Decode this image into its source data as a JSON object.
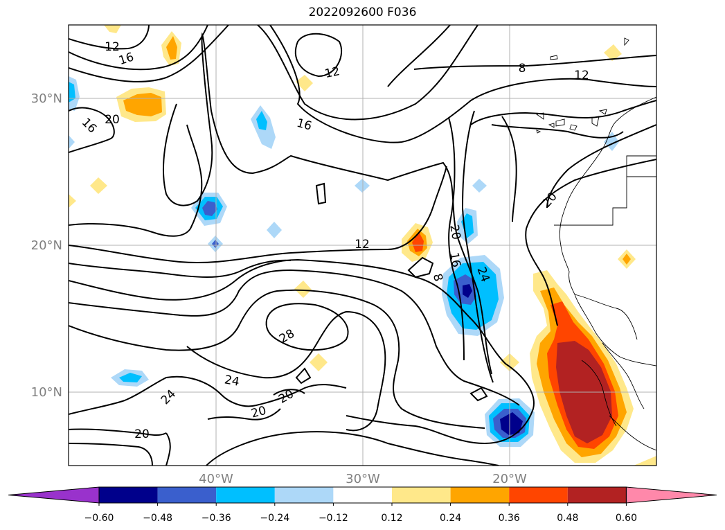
{
  "title": "2022092600 F036",
  "lat_labels": [
    "30°N",
    "20°N",
    "10°N"
  ],
  "lon_labels": [
    "40°W",
    "30°W",
    "20°W"
  ],
  "contour_labels": [
    "12",
    "16",
    "12",
    "16",
    "20",
    "16",
    "8",
    "12",
    "20",
    "20",
    "12",
    "16",
    "8",
    "24",
    "28",
    "24",
    "24",
    "20",
    "20",
    "20"
  ],
  "colorbar": {
    "colors": [
      "#9932cc",
      "#00008b",
      "#3a5fcd",
      "#00bfff",
      "#add8f8",
      "#ffffff",
      "#ffe88a",
      "#ffa500",
      "#ff4500",
      "#b22222",
      "#ff88aa"
    ],
    "tick_labels": [
      "−0.60",
      "−0.48",
      "−0.36",
      "−0.24",
      "−0.12",
      "0.12",
      "0.24",
      "0.36",
      "0.48",
      "0.60"
    ]
  },
  "colors": {
    "negative_light": "#add8f8",
    "negative_mid": "#00bfff",
    "negative_strong": "#3a5fcd",
    "negative_max": "#00008b",
    "positive_light": "#ffe88a",
    "positive_mid": "#ffa500",
    "positive_strong": "#ff4500",
    "positive_max": "#b22222"
  }
}
